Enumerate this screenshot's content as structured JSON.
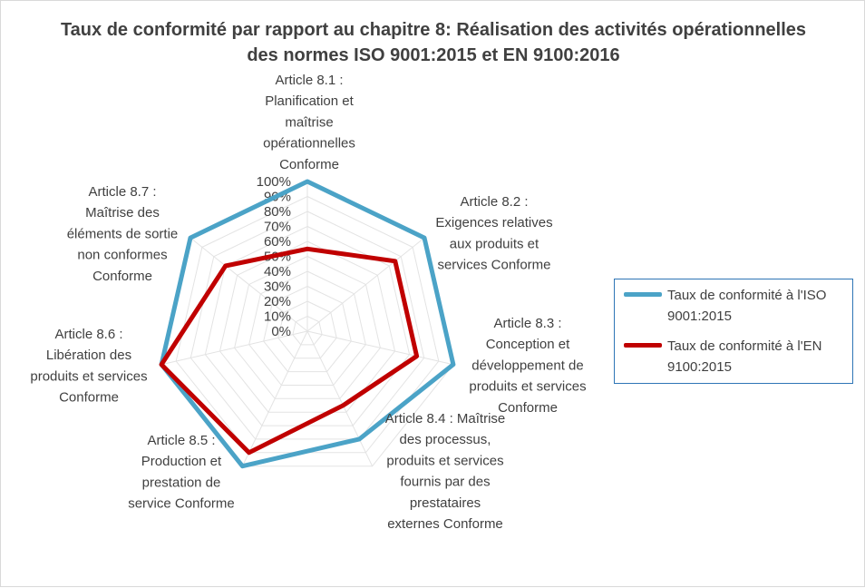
{
  "chart_data": {
    "type": "radar",
    "title": "Taux de conformité par rapport au chapitre 8: Réalisation des activités opérationnelles des normes ISO 9001:2015 et EN 9100:2016",
    "categories": [
      "Article 8.1  : Planification et maîtrise opérationnelles Conforme",
      "Article 8.2  : Exigences relatives aux produits et services Conforme",
      "Article 8.3  : Conception et développement de produits et services Conforme",
      "Article 8.4 : Maîtrise des processus, produits et services fournis par des prestataires externes Conforme",
      "Article 8.5  : Production et prestation de service Conforme",
      "Article 8.6  : Libération des produits et services Conforme",
      "Article 8.7  : Maîtrise des éléments de sortie non conformes Conforme"
    ],
    "category_lines": [
      [
        "Article 8.1  :",
        "Planification et",
        "maîtrise",
        "opérationnelles",
        "Conforme"
      ],
      [
        "Article 8.2  :",
        "Exigences relatives",
        "aux produits et",
        "services Conforme"
      ],
      [
        "Article 8.3  :",
        "Conception et",
        "développement de",
        "produits et services",
        "Conforme"
      ],
      [
        "Article 8.4 : Maîtrise",
        "des processus,",
        "produits et services",
        "fournis par des",
        "prestataires",
        "externes Conforme"
      ],
      [
        "Article 8.5  :",
        "Production et",
        "prestation de",
        "service Conforme"
      ],
      [
        "Article 8.6  :",
        "Libération des",
        "produits et services",
        "Conforme"
      ],
      [
        "Article 8.7  :",
        "Maîtrise des",
        "éléments de sortie",
        "non conformes",
        "Conforme"
      ]
    ],
    "series": [
      {
        "name": "Taux de conformité à l'ISO 9001:2015",
        "color": "#4ba3c7",
        "values": [
          100,
          100,
          100,
          80,
          100,
          100,
          100
        ]
      },
      {
        "name": "Taux de conformité à l'EN 9100:2015",
        "color": "#c00000",
        "values": [
          55,
          75,
          75,
          55,
          90,
          100,
          70
        ]
      }
    ],
    "r_ticks": [
      "0%",
      "10%",
      "20%",
      "30%",
      "40%",
      "50%",
      "60%",
      "70%",
      "80%",
      "90%",
      "100%"
    ],
    "rlim": [
      0,
      100
    ],
    "grid": true,
    "legend_position": "right"
  }
}
